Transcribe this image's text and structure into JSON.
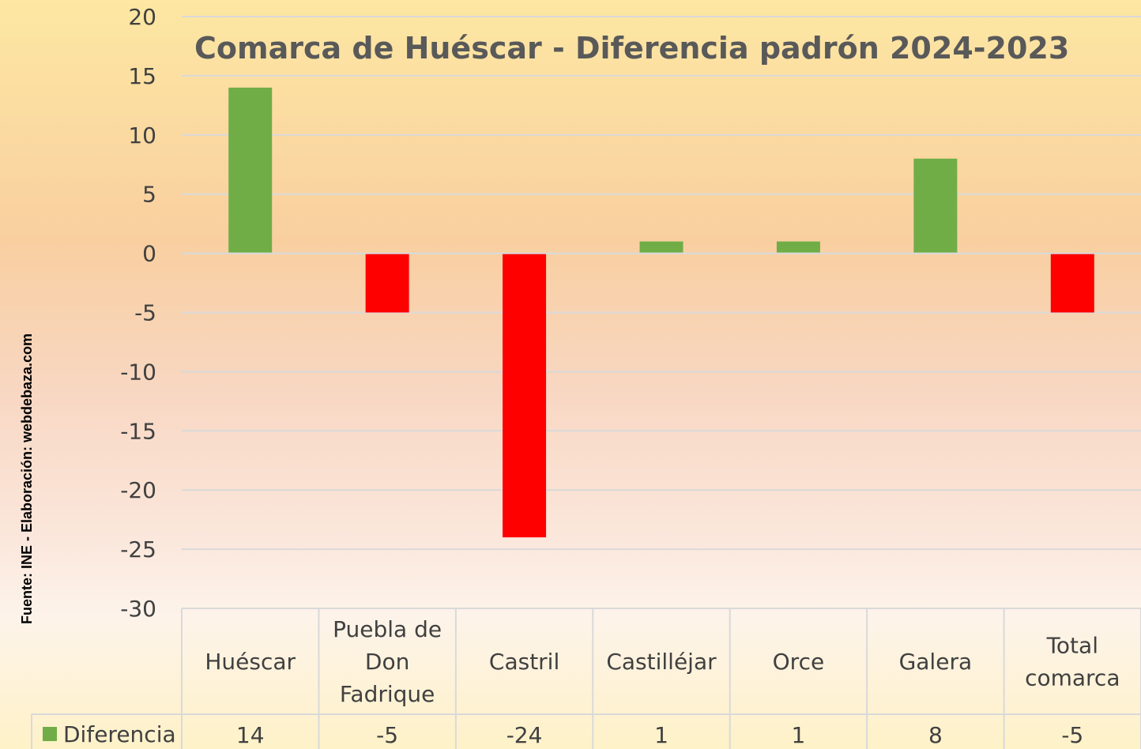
{
  "chart_data": {
    "type": "bar",
    "title": "Comarca de Huéscar - Diferencia padrón 2024-2023",
    "source": "Fuente: INE - Elaboración: webdebaza.com",
    "categories": [
      [
        "Huéscar"
      ],
      [
        "Puebla de",
        "Don",
        "Fadrique"
      ],
      [
        "Castril"
      ],
      [
        "Castilléjar"
      ],
      [
        "Orce"
      ],
      [
        "Galera"
      ],
      [
        "Total",
        "comarca"
      ]
    ],
    "series": [
      {
        "name": "Diferencia",
        "values": [
          14,
          -5,
          -24,
          1,
          1,
          8,
          -5
        ]
      }
    ],
    "ylim": [
      -30,
      20
    ],
    "yticks": [
      20,
      15,
      10,
      5,
      0,
      -5,
      -10,
      -15,
      -20,
      -25,
      -30
    ],
    "grid": true,
    "legend": "data-table",
    "data_table": true,
    "colors": {
      "positive": "#70ad47",
      "negative": "#ff0000",
      "text": "#404040",
      "grid": "#d9d9d9"
    }
  }
}
